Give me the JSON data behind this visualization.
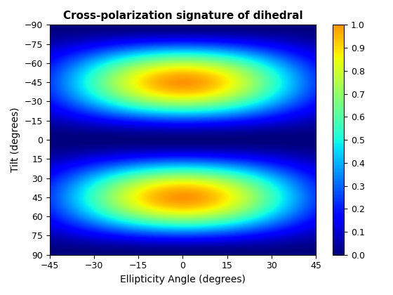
{
  "title": "Cross-polarization signature of dihedral",
  "xlabel": "Ellipticity Angle (degrees)",
  "ylabel": "Tilt (degrees)",
  "ellipticity_range": [
    -45,
    45
  ],
  "tilt_range": [
    -90,
    90
  ],
  "colormap": "jet",
  "clim": [
    0,
    1
  ],
  "colorbar_ticks": [
    0,
    0.1,
    0.2,
    0.3,
    0.4,
    0.5,
    0.6,
    0.7,
    0.8,
    0.9,
    1.0
  ],
  "xticks": [
    -45,
    -30,
    -15,
    0,
    15,
    30,
    45
  ],
  "yticks": [
    -90,
    -75,
    -60,
    -45,
    -30,
    -15,
    0,
    15,
    30,
    45,
    60,
    75,
    90
  ],
  "title_fontsize": 11,
  "label_fontsize": 10,
  "tick_fontsize": 9,
  "figsize": [
    5.6,
    4.2
  ],
  "dpi": 100
}
